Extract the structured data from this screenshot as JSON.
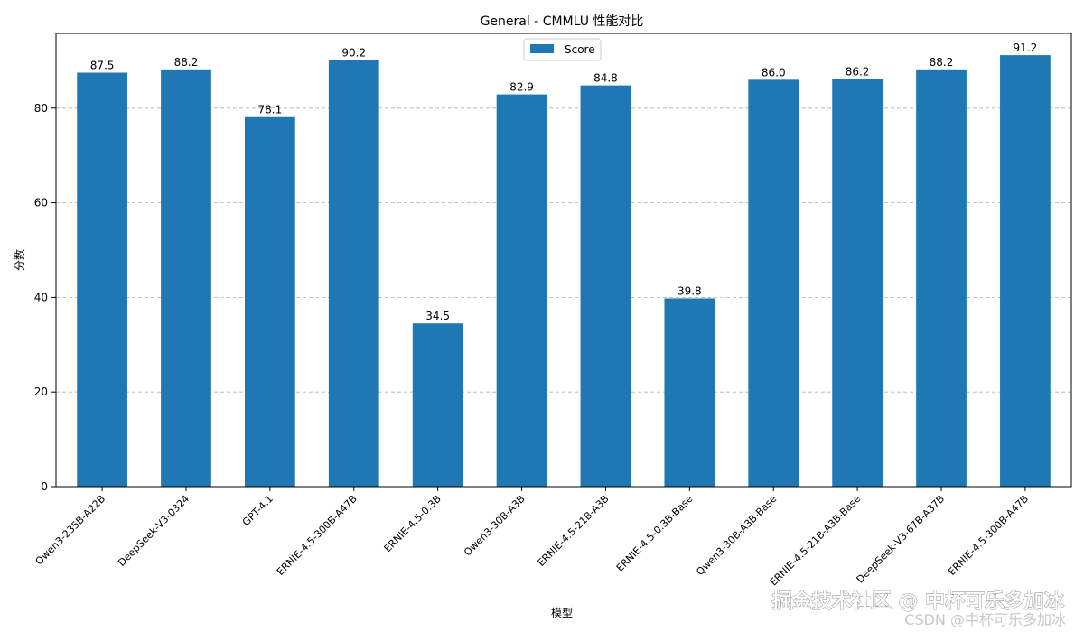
{
  "chart_data": {
    "type": "bar",
    "title": "General - CMMLU 性能对比",
    "xlabel": "模型",
    "ylabel": "分数",
    "ylim": [
      0,
      95.8
    ],
    "yticks": [
      0,
      20,
      40,
      60,
      80
    ],
    "grid": "y-dashed",
    "legend": {
      "position": "top-center",
      "entries": [
        "Score"
      ]
    },
    "categories": [
      "Qwen3-235B-A22B",
      "DeepSeek-V3-0324",
      "GPT-4.1",
      "ERNIE-4.5-300B-A47B",
      "ERNIE-4.5-0.3B",
      "Qwen3-30B-A3B",
      "ERNIE-4.5-21B-A3B",
      "ERNIE-4.5-0.3B-Base",
      "Qwen3-30B-A3B-Base",
      "ERNIE-4.5-21B-A3B-Base",
      "DeepSeek-V3-67B-A37B",
      "ERNIE-4.5-300B-A47B"
    ],
    "series": [
      {
        "name": "Score",
        "color": "#1f77b4",
        "values": [
          87.5,
          88.2,
          78.1,
          90.2,
          34.5,
          82.9,
          84.8,
          39.8,
          86.0,
          86.2,
          88.2,
          91.2
        ]
      }
    ]
  },
  "watermark": {
    "main": "掘金技术社区 @ 中杯可乐多加冰",
    "sub": "CSDN @中杯可乐多加冰"
  }
}
